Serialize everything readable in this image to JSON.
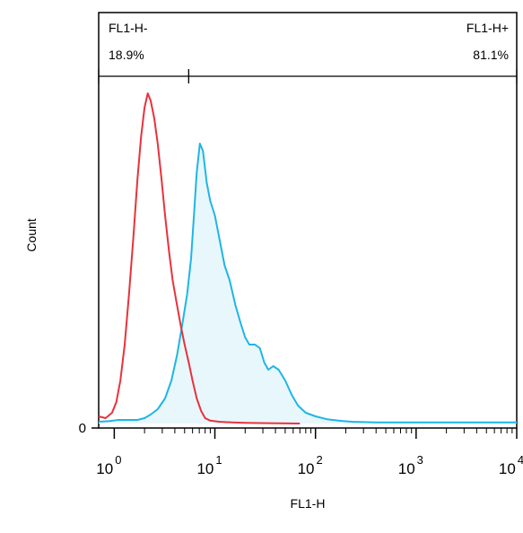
{
  "chart_data": {
    "type": "area",
    "xlabel": "FL1-H",
    "ylabel": "Count",
    "x_scale": "log",
    "xlim": [
      0.7,
      10000
    ],
    "x_ticks": [
      {
        "value": 1,
        "base": "10",
        "exp": "0"
      },
      {
        "value": 10,
        "base": "10",
        "exp": "1"
      },
      {
        "value": 100,
        "base": "10",
        "exp": "2"
      },
      {
        "value": 1000,
        "base": "10",
        "exp": "3"
      },
      {
        "value": 10000,
        "base": "10",
        "exp": "4"
      }
    ],
    "y_ticks": [
      {
        "value": 0,
        "label": "0"
      }
    ],
    "ylim": [
      0,
      100
    ],
    "gates": [
      {
        "name": "FL1-H-",
        "percent": "18.9%",
        "x_start": 0.7,
        "x_end": 5.5
      },
      {
        "name": "FL1-H+",
        "percent": "81.1%",
        "x_start": 5.5,
        "x_end": 10000
      }
    ],
    "series": [
      {
        "color": "#e8323c",
        "fill": false,
        "points": [
          [
            0.7,
            2
          ],
          [
            0.82,
            1.5
          ],
          [
            0.95,
            3
          ],
          [
            1.05,
            6
          ],
          [
            1.15,
            12
          ],
          [
            1.27,
            22
          ],
          [
            1.4,
            36
          ],
          [
            1.55,
            52
          ],
          [
            1.7,
            68
          ],
          [
            1.85,
            80
          ],
          [
            2.0,
            88
          ],
          [
            2.15,
            92
          ],
          [
            2.3,
            90
          ],
          [
            2.5,
            85
          ],
          [
            2.7,
            78
          ],
          [
            2.95,
            68
          ],
          [
            3.2,
            58
          ],
          [
            3.5,
            48
          ],
          [
            3.8,
            40
          ],
          [
            4.2,
            33
          ],
          [
            4.6,
            27
          ],
          [
            5.0,
            22
          ],
          [
            5.5,
            17
          ],
          [
            6.0,
            12
          ],
          [
            6.6,
            7
          ],
          [
            7.3,
            3.5
          ],
          [
            8.0,
            1.5
          ],
          [
            9.0,
            0.8
          ],
          [
            11,
            0.5
          ],
          [
            15,
            0.3
          ],
          [
            20,
            0.2
          ],
          [
            35,
            0.1
          ],
          [
            70,
            0
          ]
        ]
      },
      {
        "color": "#1fb5e8",
        "fill": true,
        "fill_color": "#e8f7fc",
        "points": [
          [
            0.7,
            0.5
          ],
          [
            0.9,
            0.7
          ],
          [
            1.1,
            1
          ],
          [
            1.4,
            1
          ],
          [
            1.7,
            1
          ],
          [
            2.0,
            1.5
          ],
          [
            2.3,
            2.5
          ],
          [
            2.7,
            4
          ],
          [
            3.2,
            7
          ],
          [
            3.7,
            12
          ],
          [
            4.2,
            19
          ],
          [
            4.7,
            27
          ],
          [
            5.3,
            36
          ],
          [
            5.8,
            46
          ],
          [
            6.2,
            58
          ],
          [
            6.6,
            70
          ],
          [
            7.1,
            78
          ],
          [
            7.6,
            76
          ],
          [
            8.3,
            67
          ],
          [
            9.0,
            62
          ],
          [
            10,
            58
          ],
          [
            11,
            52
          ],
          [
            12.5,
            44
          ],
          [
            14,
            40
          ],
          [
            16,
            33
          ],
          [
            18,
            28
          ],
          [
            20,
            24
          ],
          [
            22,
            22
          ],
          [
            25,
            22
          ],
          [
            28,
            21
          ],
          [
            31,
            17
          ],
          [
            34,
            15
          ],
          [
            38,
            16
          ],
          [
            43,
            15
          ],
          [
            50,
            12
          ],
          [
            58,
            8
          ],
          [
            67,
            5
          ],
          [
            80,
            3
          ],
          [
            100,
            2
          ],
          [
            130,
            1.2
          ],
          [
            170,
            0.8
          ],
          [
            230,
            0.5
          ],
          [
            400,
            0.3
          ],
          [
            1000,
            0.3
          ],
          [
            10000,
            0.3
          ]
        ]
      }
    ]
  }
}
